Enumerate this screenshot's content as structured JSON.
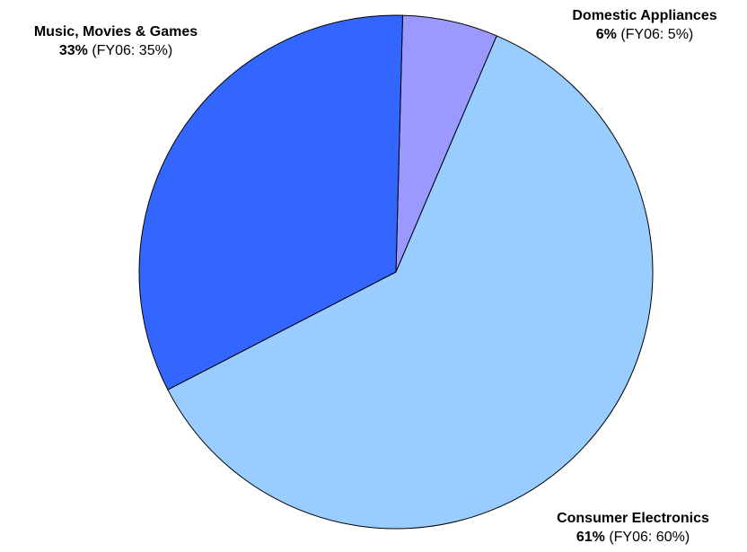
{
  "chart_data": {
    "type": "pie",
    "title": "",
    "start_angle_deg": 0,
    "direction": "clockwise",
    "slices": [
      {
        "name": "Domestic Appliances",
        "value": 6,
        "value_label": "6%",
        "prior_label": "(FY06: 5%)",
        "color": "#9999ff"
      },
      {
        "name": "Consumer Electronics",
        "value": 61,
        "value_label": "61%",
        "prior_label": "(FY06: 60%)",
        "color": "#99ccff"
      },
      {
        "name": "Music, Movies & Games",
        "value": 33,
        "value_label": "33%",
        "prior_label": "(FY06: 35%)",
        "color": "#3366ff"
      }
    ],
    "slice_order_from_top": [
      "Domestic Appliances",
      "Consumer Electronics",
      "Music, Movies & Games"
    ],
    "outline_color": "#000000",
    "legend": "none"
  }
}
